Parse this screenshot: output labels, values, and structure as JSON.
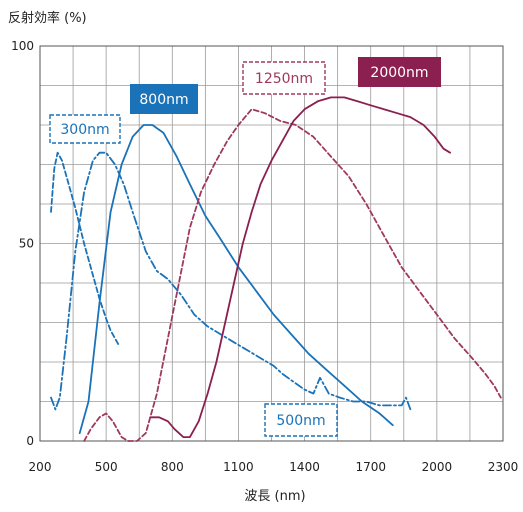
{
  "chart_data": {
    "type": "line",
    "title": "",
    "xlabel": "波長 (nm)",
    "ylabel": "反射効率 (%)",
    "xlim": [
      200,
      2300
    ],
    "ylim": [
      0,
      100
    ],
    "x_ticks": [
      200,
      500,
      800,
      1100,
      1400,
      1700,
      2000,
      2300
    ],
    "y_ticks": [
      0,
      50,
      100
    ],
    "grid": true,
    "series": [
      {
        "name": "300nm",
        "color": "#1a72b8",
        "style": "dashed",
        "points": [
          [
            250,
            58
          ],
          [
            265,
            69
          ],
          [
            280,
            73
          ],
          [
            300,
            71
          ],
          [
            330,
            65
          ],
          [
            360,
            59
          ],
          [
            400,
            50
          ],
          [
            440,
            42
          ],
          [
            470,
            36
          ],
          [
            500,
            31
          ],
          [
            520,
            28
          ],
          [
            540,
            26
          ],
          [
            560,
            24
          ]
        ]
      },
      {
        "name": "500nm",
        "color": "#1a72b8",
        "style": "dashdot",
        "points": [
          [
            250,
            11
          ],
          [
            270,
            8
          ],
          [
            290,
            11
          ],
          [
            320,
            26
          ],
          [
            360,
            48
          ],
          [
            400,
            63
          ],
          [
            440,
            71
          ],
          [
            470,
            73
          ],
          [
            500,
            73
          ],
          [
            540,
            70
          ],
          [
            580,
            65
          ],
          [
            620,
            58
          ],
          [
            680,
            48
          ],
          [
            730,
            43
          ],
          [
            780,
            41
          ],
          [
            840,
            37
          ],
          [
            900,
            32
          ],
          [
            960,
            29
          ],
          [
            1020,
            27
          ],
          [
            1080,
            25
          ],
          [
            1140,
            23
          ],
          [
            1200,
            21
          ],
          [
            1260,
            19
          ],
          [
            1300,
            17
          ],
          [
            1350,
            15
          ],
          [
            1400,
            13
          ],
          [
            1440,
            12
          ],
          [
            1470,
            16
          ],
          [
            1510,
            12
          ],
          [
            1560,
            11
          ],
          [
            1620,
            10
          ],
          [
            1680,
            10
          ],
          [
            1740,
            9
          ],
          [
            1800,
            9
          ],
          [
            1840,
            9
          ],
          [
            1860,
            11
          ],
          [
            1880,
            8
          ]
        ]
      },
      {
        "name": "800nm",
        "color": "#1a72b8",
        "style": "solid",
        "points": [
          [
            380,
            2
          ],
          [
            420,
            10
          ],
          [
            470,
            35
          ],
          [
            520,
            58
          ],
          [
            570,
            70
          ],
          [
            620,
            77
          ],
          [
            670,
            80
          ],
          [
            710,
            80
          ],
          [
            760,
            78
          ],
          [
            820,
            72
          ],
          [
            880,
            65
          ],
          [
            950,
            57
          ],
          [
            1020,
            51
          ],
          [
            1100,
            44
          ],
          [
            1180,
            38
          ],
          [
            1260,
            32
          ],
          [
            1340,
            27
          ],
          [
            1420,
            22
          ],
          [
            1500,
            18
          ],
          [
            1580,
            14
          ],
          [
            1660,
            10
          ],
          [
            1740,
            7
          ],
          [
            1780,
            5
          ],
          [
            1800,
            4
          ]
        ]
      },
      {
        "name": "1250nm",
        "color": "#a0385e",
        "style": "dashed",
        "points": [
          [
            400,
            0
          ],
          [
            430,
            3
          ],
          [
            470,
            6
          ],
          [
            500,
            7
          ],
          [
            530,
            5
          ],
          [
            570,
            1
          ],
          [
            600,
            0
          ],
          [
            640,
            0
          ],
          [
            680,
            2
          ],
          [
            730,
            12
          ],
          [
            780,
            26
          ],
          [
            830,
            40
          ],
          [
            880,
            54
          ],
          [
            930,
            63
          ],
          [
            990,
            70
          ],
          [
            1050,
            76
          ],
          [
            1100,
            80
          ],
          [
            1160,
            84
          ],
          [
            1220,
            83
          ],
          [
            1290,
            81
          ],
          [
            1360,
            80
          ],
          [
            1440,
            77
          ],
          [
            1520,
            72
          ],
          [
            1600,
            67
          ],
          [
            1680,
            60
          ],
          [
            1760,
            52
          ],
          [
            1840,
            44
          ],
          [
            1920,
            38
          ],
          [
            2000,
            32
          ],
          [
            2080,
            26
          ],
          [
            2160,
            21
          ],
          [
            2220,
            17
          ],
          [
            2260,
            14
          ],
          [
            2290,
            11
          ]
        ]
      },
      {
        "name": "2000nm",
        "color": "#8b1f4f",
        "style": "solid",
        "points": [
          [
            700,
            6
          ],
          [
            740,
            6
          ],
          [
            780,
            5
          ],
          [
            810,
            3
          ],
          [
            850,
            1
          ],
          [
            880,
            1
          ],
          [
            920,
            5
          ],
          [
            960,
            12
          ],
          [
            1000,
            20
          ],
          [
            1040,
            30
          ],
          [
            1080,
            40
          ],
          [
            1120,
            50
          ],
          [
            1160,
            58
          ],
          [
            1200,
            65
          ],
          [
            1250,
            71
          ],
          [
            1300,
            76
          ],
          [
            1350,
            81
          ],
          [
            1400,
            84
          ],
          [
            1460,
            86
          ],
          [
            1520,
            87
          ],
          [
            1580,
            87
          ],
          [
            1640,
            86
          ],
          [
            1700,
            85
          ],
          [
            1760,
            84
          ],
          [
            1820,
            83
          ],
          [
            1880,
            82
          ],
          [
            1940,
            80
          ],
          [
            1990,
            77
          ],
          [
            2030,
            74
          ],
          [
            2060,
            73
          ]
        ]
      }
    ],
    "annotations": [
      {
        "text": "300nm",
        "series": "300nm",
        "box": "dashed"
      },
      {
        "text": "800nm",
        "series": "800nm",
        "box": "filled"
      },
      {
        "text": "1250nm",
        "series": "1250nm",
        "box": "dashed"
      },
      {
        "text": "2000nm",
        "series": "2000nm",
        "box": "filled"
      },
      {
        "text": "500nm",
        "series": "500nm",
        "box": "dashed"
      }
    ]
  }
}
